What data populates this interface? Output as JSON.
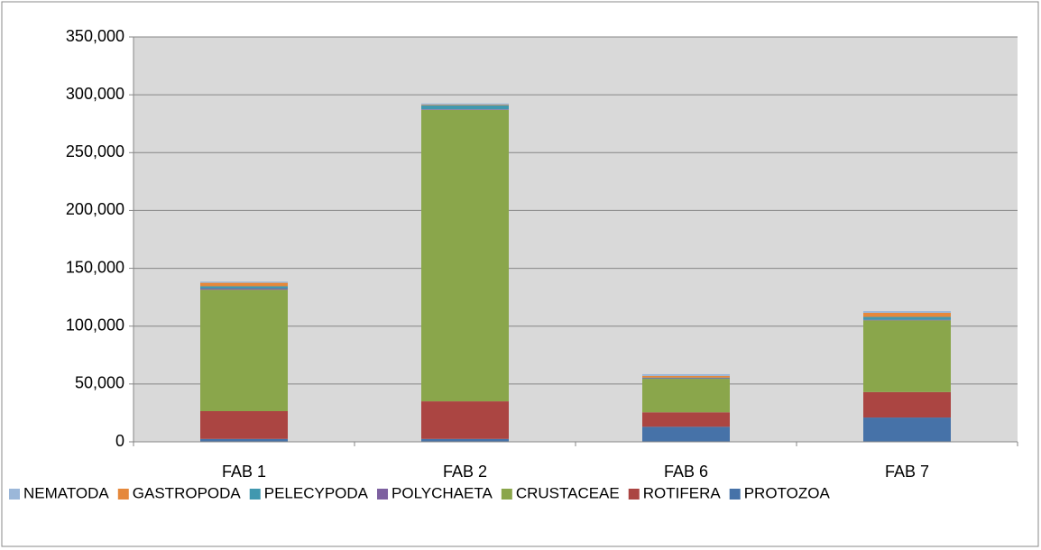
{
  "chart_data": {
    "type": "stacked_bar",
    "categories": [
      "FAB 1",
      "FAB 2",
      "FAB 6",
      "FAB 7"
    ],
    "series": [
      {
        "name": "NEMATODA",
        "color": "#9bb7d9",
        "values": [
          1000,
          1000,
          1500,
          1500
        ]
      },
      {
        "name": "GASTROPODA",
        "color": "#e5883b",
        "values": [
          3000,
          500,
          1500,
          3500
        ]
      },
      {
        "name": "PELECYPODA",
        "color": "#4198af",
        "values": [
          2000,
          3500,
          500,
          2500
        ]
      },
      {
        "name": "POLYCHAETA",
        "color": "#7d60a0",
        "values": [
          1000,
          500,
          500,
          500
        ]
      },
      {
        "name": "CRUSTACEAE",
        "color": "#8aa64b",
        "values": [
          105000,
          252000,
          29000,
          62000
        ]
      },
      {
        "name": "ROTIFERA",
        "color": "#ab4542",
        "values": [
          24000,
          32500,
          12500,
          22000
        ]
      },
      {
        "name": "PROTOZOA",
        "color": "#4672a8",
        "values": [
          2500,
          2500,
          13000,
          21000
        ]
      }
    ],
    "ylim": [
      0,
      350000
    ],
    "yticks": [
      0,
      {
        "value": 50000,
        "label": "50,000"
      },
      {
        "value": 100000,
        "label": "100,000"
      },
      {
        "value": 150000,
        "label": "150,000"
      },
      {
        "value": 200000,
        "label": "200,000"
      },
      {
        "value": 250000,
        "label": "250,000"
      },
      {
        "value": 300000,
        "label": "300,000"
      },
      {
        "value": 350000,
        "label": "350,000"
      }
    ],
    "grid": true,
    "legend": "bottom"
  }
}
